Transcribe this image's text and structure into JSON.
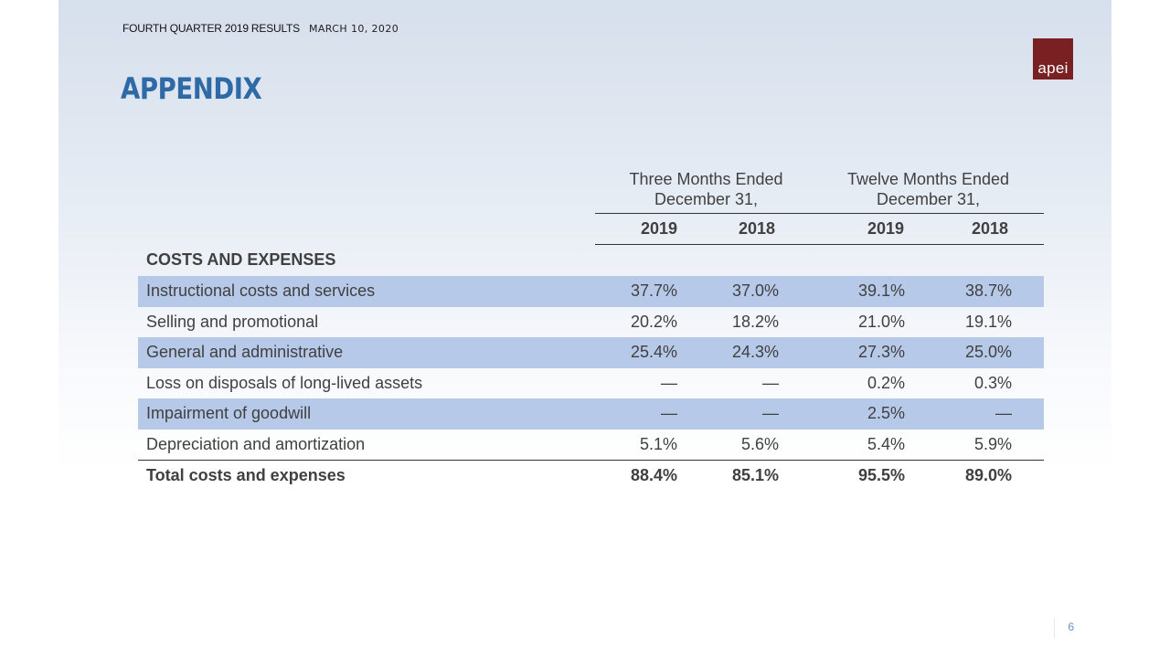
{
  "header": {
    "results_label": "FOURTH QUARTER 2019 RESULTS",
    "date": "MARCH 10, 2020",
    "title": "APPENDIX",
    "logo_text": "apei"
  },
  "table": {
    "groups": [
      {
        "line1": "Three Months Ended",
        "line2": "December 31,"
      },
      {
        "line1": "Twelve Months Ended",
        "line2": "December 31,"
      }
    ],
    "years": [
      "2019",
      "2018",
      "2019",
      "2018"
    ],
    "section_label": "COSTS AND EXPENSES",
    "rows": [
      {
        "label": "Instructional costs and services",
        "values": [
          "37.7%",
          "37.0%",
          "39.1%",
          "38.7%"
        ]
      },
      {
        "label": "Selling and promotional",
        "values": [
          "20.2%",
          "18.2%",
          "21.0%",
          "19.1%"
        ]
      },
      {
        "label": "General and administrative",
        "values": [
          "25.4%",
          "24.3%",
          "27.3%",
          "25.0%"
        ]
      },
      {
        "label": "Loss on disposals of long-lived assets",
        "values": [
          "—",
          "—",
          "0.2%",
          "0.3%"
        ]
      },
      {
        "label": "Impairment of goodwill",
        "values": [
          "—",
          "—",
          "2.5%",
          "—"
        ]
      },
      {
        "label": "Depreciation and amortization",
        "values": [
          "5.1%",
          "5.6%",
          "5.4%",
          "5.9%"
        ]
      }
    ],
    "total": {
      "label": "Total costs and expenses",
      "values": [
        "88.4%",
        "85.1%",
        "95.5%",
        "89.0%"
      ]
    }
  },
  "footer": {
    "page_number": "6"
  },
  "colors": {
    "title": "#2e6aa6",
    "logo_bg": "#7a1f22",
    "row_shade": "#b7c9e8"
  }
}
